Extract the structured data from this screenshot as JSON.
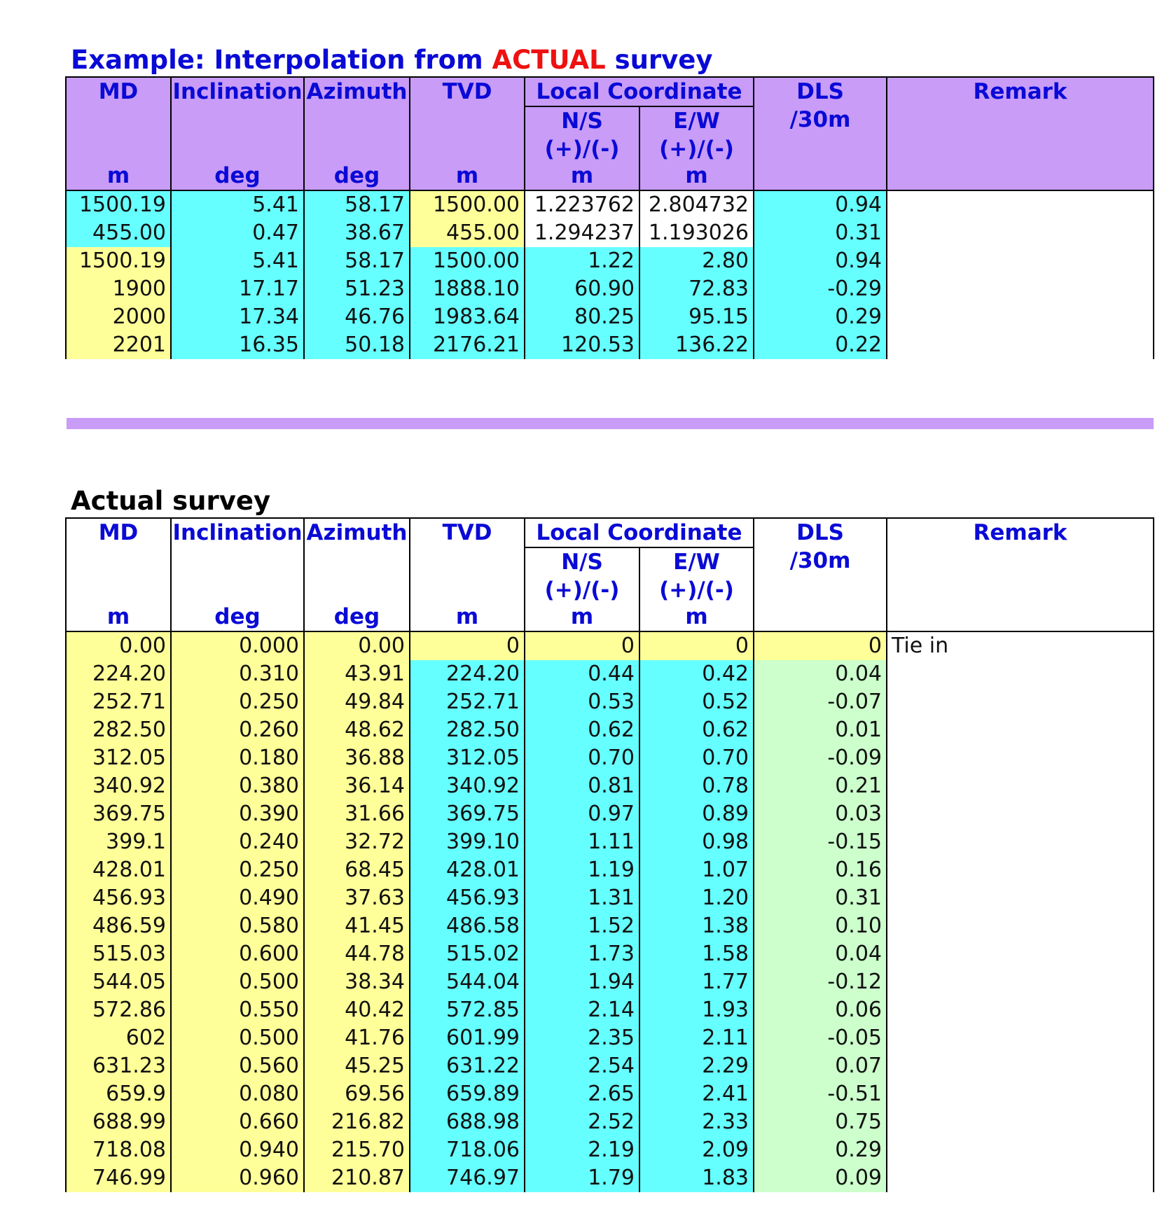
{
  "example_title": {
    "prefix": "Example: Interpolation from",
    "highlight": "ACTUAL",
    "suffix": "survey"
  },
  "actual_title": "Actual survey",
  "headers": {
    "md": "MD",
    "md_unit": "m",
    "inclination": "Inclination",
    "inclination_unit": "deg",
    "azimuth": "Azimuth",
    "azimuth_unit": "deg",
    "tvd": "TVD",
    "tvd_unit": "m",
    "local_coordinate": "Local Coordinate",
    "ns": "N/S",
    "ns_sign": "(+)/(-)",
    "ns_unit": "m",
    "ew": "E/W",
    "ew_sign": "(+)/(-)",
    "ew_unit": "m",
    "dls": "DLS",
    "dls_unit": "/30m",
    "remark": "Remark"
  },
  "colors": {
    "header_purple": "#c89cf7",
    "header_text_blue": "#0a0ad6",
    "highlight_red": "#ee1111",
    "cell_yellow": "#ffff99",
    "cell_cyan": "#66ffff",
    "cell_green": "#ccffcc"
  },
  "example_rows": [
    {
      "md": "1500.19",
      "inc": "5.41",
      "azi": "58.17",
      "tvd": "1500.00",
      "ns": "1.223762",
      "ew": "2.804732",
      "dls": "0.94",
      "remark": "",
      "bg": [
        "c",
        "c",
        "c",
        "y",
        "w",
        "w",
        "c"
      ]
    },
    {
      "md": "455.00",
      "inc": "0.47",
      "azi": "38.67",
      "tvd": "455.00",
      "ns": "1.294237",
      "ew": "1.193026",
      "dls": "0.31",
      "remark": "",
      "bg": [
        "c",
        "c",
        "c",
        "y",
        "w",
        "w",
        "c"
      ]
    },
    {
      "md": "1500.19",
      "inc": "5.41",
      "azi": "58.17",
      "tvd": "1500.00",
      "ns": "1.22",
      "ew": "2.80",
      "dls": "0.94",
      "remark": "",
      "bg": [
        "y",
        "c",
        "c",
        "c",
        "c",
        "c",
        "c"
      ]
    },
    {
      "md": "1900",
      "inc": "17.17",
      "azi": "51.23",
      "tvd": "1888.10",
      "ns": "60.90",
      "ew": "72.83",
      "dls": "-0.29",
      "remark": "",
      "bg": [
        "y",
        "c",
        "c",
        "c",
        "c",
        "c",
        "c"
      ]
    },
    {
      "md": "2000",
      "inc": "17.34",
      "azi": "46.76",
      "tvd": "1983.64",
      "ns": "80.25",
      "ew": "95.15",
      "dls": "0.29",
      "remark": "",
      "bg": [
        "y",
        "c",
        "c",
        "c",
        "c",
        "c",
        "c"
      ]
    },
    {
      "md": "2201",
      "inc": "16.35",
      "azi": "50.18",
      "tvd": "2176.21",
      "ns": "120.53",
      "ew": "136.22",
      "dls": "0.22",
      "remark": "",
      "bg": [
        "y",
        "c",
        "c",
        "c",
        "c",
        "c",
        "c"
      ]
    }
  ],
  "actual_rows": [
    {
      "md": "0.00",
      "inc": "0.000",
      "azi": "0.00",
      "tvd": "0",
      "ns": "0",
      "ew": "0",
      "dls": "0",
      "remark": "Tie in",
      "bg": [
        "y",
        "y",
        "y",
        "y",
        "y",
        "y",
        "y"
      ]
    },
    {
      "md": "224.20",
      "inc": "0.310",
      "azi": "43.91",
      "tvd": "224.20",
      "ns": "0.44",
      "ew": "0.42",
      "dls": "0.04",
      "remark": "",
      "bg": [
        "y",
        "y",
        "y",
        "c",
        "c",
        "c",
        "g"
      ]
    },
    {
      "md": "252.71",
      "inc": "0.250",
      "azi": "49.84",
      "tvd": "252.71",
      "ns": "0.53",
      "ew": "0.52",
      "dls": "-0.07",
      "remark": "",
      "bg": [
        "y",
        "y",
        "y",
        "c",
        "c",
        "c",
        "g"
      ]
    },
    {
      "md": "282.50",
      "inc": "0.260",
      "azi": "48.62",
      "tvd": "282.50",
      "ns": "0.62",
      "ew": "0.62",
      "dls": "0.01",
      "remark": "",
      "bg": [
        "y",
        "y",
        "y",
        "c",
        "c",
        "c",
        "g"
      ]
    },
    {
      "md": "312.05",
      "inc": "0.180",
      "azi": "36.88",
      "tvd": "312.05",
      "ns": "0.70",
      "ew": "0.70",
      "dls": "-0.09",
      "remark": "",
      "bg": [
        "y",
        "y",
        "y",
        "c",
        "c",
        "c",
        "g"
      ]
    },
    {
      "md": "340.92",
      "inc": "0.380",
      "azi": "36.14",
      "tvd": "340.92",
      "ns": "0.81",
      "ew": "0.78",
      "dls": "0.21",
      "remark": "",
      "bg": [
        "y",
        "y",
        "y",
        "c",
        "c",
        "c",
        "g"
      ]
    },
    {
      "md": "369.75",
      "inc": "0.390",
      "azi": "31.66",
      "tvd": "369.75",
      "ns": "0.97",
      "ew": "0.89",
      "dls": "0.03",
      "remark": "",
      "bg": [
        "y",
        "y",
        "y",
        "c",
        "c",
        "c",
        "g"
      ]
    },
    {
      "md": "399.1",
      "inc": "0.240",
      "azi": "32.72",
      "tvd": "399.10",
      "ns": "1.11",
      "ew": "0.98",
      "dls": "-0.15",
      "remark": "",
      "bg": [
        "y",
        "y",
        "y",
        "c",
        "c",
        "c",
        "g"
      ]
    },
    {
      "md": "428.01",
      "inc": "0.250",
      "azi": "68.45",
      "tvd": "428.01",
      "ns": "1.19",
      "ew": "1.07",
      "dls": "0.16",
      "remark": "",
      "bg": [
        "y",
        "y",
        "y",
        "c",
        "c",
        "c",
        "g"
      ]
    },
    {
      "md": "456.93",
      "inc": "0.490",
      "azi": "37.63",
      "tvd": "456.93",
      "ns": "1.31",
      "ew": "1.20",
      "dls": "0.31",
      "remark": "",
      "bg": [
        "y",
        "y",
        "y",
        "c",
        "c",
        "c",
        "g"
      ]
    },
    {
      "md": "486.59",
      "inc": "0.580",
      "azi": "41.45",
      "tvd": "486.58",
      "ns": "1.52",
      "ew": "1.38",
      "dls": "0.10",
      "remark": "",
      "bg": [
        "y",
        "y",
        "y",
        "c",
        "c",
        "c",
        "g"
      ]
    },
    {
      "md": "515.03",
      "inc": "0.600",
      "azi": "44.78",
      "tvd": "515.02",
      "ns": "1.73",
      "ew": "1.58",
      "dls": "0.04",
      "remark": "",
      "bg": [
        "y",
        "y",
        "y",
        "c",
        "c",
        "c",
        "g"
      ]
    },
    {
      "md": "544.05",
      "inc": "0.500",
      "azi": "38.34",
      "tvd": "544.04",
      "ns": "1.94",
      "ew": "1.77",
      "dls": "-0.12",
      "remark": "",
      "bg": [
        "y",
        "y",
        "y",
        "c",
        "c",
        "c",
        "g"
      ]
    },
    {
      "md": "572.86",
      "inc": "0.550",
      "azi": "40.42",
      "tvd": "572.85",
      "ns": "2.14",
      "ew": "1.93",
      "dls": "0.06",
      "remark": "",
      "bg": [
        "y",
        "y",
        "y",
        "c",
        "c",
        "c",
        "g"
      ]
    },
    {
      "md": "602",
      "inc": "0.500",
      "azi": "41.76",
      "tvd": "601.99",
      "ns": "2.35",
      "ew": "2.11",
      "dls": "-0.05",
      "remark": "",
      "bg": [
        "y",
        "y",
        "y",
        "c",
        "c",
        "c",
        "g"
      ]
    },
    {
      "md": "631.23",
      "inc": "0.560",
      "azi": "45.25",
      "tvd": "631.22",
      "ns": "2.54",
      "ew": "2.29",
      "dls": "0.07",
      "remark": "",
      "bg": [
        "y",
        "y",
        "y",
        "c",
        "c",
        "c",
        "g"
      ]
    },
    {
      "md": "659.9",
      "inc": "0.080",
      "azi": "69.56",
      "tvd": "659.89",
      "ns": "2.65",
      "ew": "2.41",
      "dls": "-0.51",
      "remark": "",
      "bg": [
        "y",
        "y",
        "y",
        "c",
        "c",
        "c",
        "g"
      ]
    },
    {
      "md": "688.99",
      "inc": "0.660",
      "azi": "216.82",
      "tvd": "688.98",
      "ns": "2.52",
      "ew": "2.33",
      "dls": "0.75",
      "remark": "",
      "bg": [
        "y",
        "y",
        "y",
        "c",
        "c",
        "c",
        "g"
      ]
    },
    {
      "md": "718.08",
      "inc": "0.940",
      "azi": "215.70",
      "tvd": "718.06",
      "ns": "2.19",
      "ew": "2.09",
      "dls": "0.29",
      "remark": "",
      "bg": [
        "y",
        "y",
        "y",
        "c",
        "c",
        "c",
        "g"
      ]
    },
    {
      "md": "746.99",
      "inc": "0.960",
      "azi": "210.87",
      "tvd": "746.97",
      "ns": "1.79",
      "ew": "1.83",
      "dls": "0.09",
      "remark": "",
      "bg": [
        "y",
        "y",
        "y",
        "c",
        "c",
        "c",
        "g"
      ]
    }
  ]
}
